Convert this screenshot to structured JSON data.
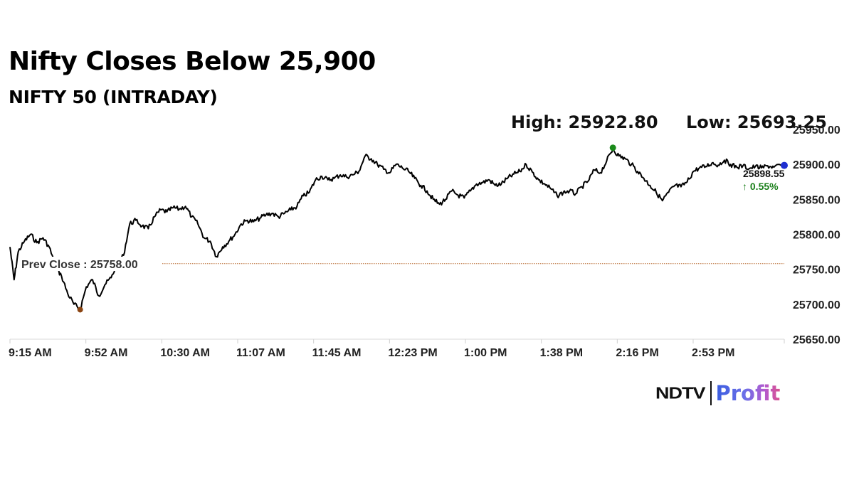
{
  "header": {
    "title": "Nifty Closes Below 25,900",
    "subtitle": "NIFTY 50 (INTRADAY)",
    "high_label": "High: 25922.80",
    "low_label": "Low: 25693.25"
  },
  "annotations": {
    "prev_close_label": "Prev Close : 25758.00",
    "last_price": "25898.55",
    "change": "↑ 0.55%"
  },
  "colors": {
    "line": "#000000",
    "high_marker": "#1a8a1a",
    "low_marker": "#8b4513",
    "last_marker": "#1f2fd0",
    "prev_close_line": "#b5652a",
    "change_positive": "#1a7f1a",
    "grid": "#d9d9d9"
  },
  "logo": {
    "brand": "NDTV",
    "product": "Profit"
  },
  "chart_data": {
    "type": "line",
    "title": "Nifty Closes Below 25,900",
    "subtitle": "NIFTY 50 (INTRADAY)",
    "xlabel": "",
    "ylabel": "",
    "ylim": [
      25650,
      25950
    ],
    "y_ticks": [
      "25650.00",
      "25700.00",
      "25750.00",
      "25800.00",
      "25850.00",
      "25900.00",
      "25950.00"
    ],
    "x_ticks": [
      "9:15 AM",
      "9:52 AM",
      "10:30 AM",
      "11:07 AM",
      "11:45 AM",
      "12:23 PM",
      "1:00 PM",
      "1:38 PM",
      "2:16 PM",
      "2:53 PM"
    ],
    "grid": false,
    "legend": null,
    "high": 25922.8,
    "low": 25693.25,
    "prev_close": 25758.0,
    "last": 25898.55,
    "change_pct": 0.55,
    "series": [
      {
        "name": "NIFTY 50",
        "x": [
          "9:15",
          "9:17",
          "9:19",
          "9:22",
          "9:25",
          "9:28",
          "9:31",
          "9:34",
          "9:37",
          "9:40",
          "9:43",
          "9:46",
          "9:49",
          "9:52",
          "9:55",
          "9:58",
          "10:01",
          "10:04",
          "10:07",
          "10:10",
          "10:13",
          "10:16",
          "10:19",
          "10:22",
          "10:25",
          "10:28",
          "10:31",
          "10:34",
          "10:37",
          "10:40",
          "10:43",
          "10:46",
          "10:49",
          "10:52",
          "10:55",
          "10:58",
          "11:01",
          "11:04",
          "11:07",
          "11:10",
          "11:13",
          "11:16",
          "11:19",
          "11:22",
          "11:25",
          "11:28",
          "11:31",
          "11:34",
          "11:37",
          "11:40",
          "11:43",
          "11:46",
          "11:49",
          "11:52",
          "11:55",
          "11:58",
          "12:01",
          "12:04",
          "12:07",
          "12:10",
          "12:13",
          "12:16",
          "12:19",
          "12:22",
          "12:25",
          "12:28",
          "12:31",
          "12:34",
          "12:37",
          "12:40",
          "12:43",
          "12:46",
          "12:49",
          "12:52",
          "12:55",
          "12:58",
          "13:01",
          "13:04",
          "13:07",
          "13:10",
          "13:13",
          "13:16",
          "13:19",
          "13:22",
          "13:25",
          "13:28",
          "13:31",
          "13:34",
          "13:37",
          "13:40",
          "13:43",
          "13:46",
          "13:49",
          "13:52",
          "13:55",
          "13:58",
          "14:01",
          "14:04",
          "14:07",
          "14:10",
          "14:13",
          "14:16",
          "14:19",
          "14:22",
          "14:25",
          "14:28",
          "14:31",
          "14:34",
          "14:37",
          "14:40",
          "14:43",
          "14:46",
          "14:49",
          "14:52",
          "14:55",
          "14:58",
          "15:01",
          "15:04",
          "15:07",
          "15:10",
          "15:13",
          "15:16",
          "15:19",
          "15:22",
          "15:25",
          "15:29"
        ],
        "values": [
          25782,
          25735,
          25775,
          25790,
          25800,
          25788,
          25795,
          25782,
          25755,
          25740,
          25715,
          25700,
          25693,
          25725,
          25735,
          25712,
          25728,
          25738,
          25758,
          25770,
          25815,
          25820,
          25812,
          25808,
          25825,
          25835,
          25832,
          25838,
          25836,
          25840,
          25825,
          25815,
          25795,
          25790,
          25768,
          25782,
          25790,
          25800,
          25815,
          25820,
          25818,
          25823,
          25828,
          25830,
          25825,
          25830,
          25835,
          25840,
          25855,
          25860,
          25878,
          25883,
          25878,
          25880,
          25885,
          25882,
          25885,
          25890,
          25912,
          25908,
          25900,
          25893,
          25888,
          25900,
          25895,
          25890,
          25880,
          25870,
          25862,
          25850,
          25843,
          25850,
          25862,
          25856,
          25852,
          25862,
          25872,
          25874,
          25878,
          25870,
          25872,
          25880,
          25886,
          25890,
          25900,
          25889,
          25878,
          25872,
          25865,
          25855,
          25860,
          25862,
          25858,
          25868,
          25876,
          25892,
          25888,
          25905,
          25922,
          25912,
          25908,
          25900,
          25890,
          25880,
          25870,
          25860,
          25848,
          25860,
          25870,
          25868,
          25875,
          25890,
          25895,
          25897,
          25902,
          25899,
          25906,
          25900,
          25896,
          25898,
          25894,
          25897,
          25895,
          25898,
          25896,
          25898.55
        ]
      }
    ]
  }
}
